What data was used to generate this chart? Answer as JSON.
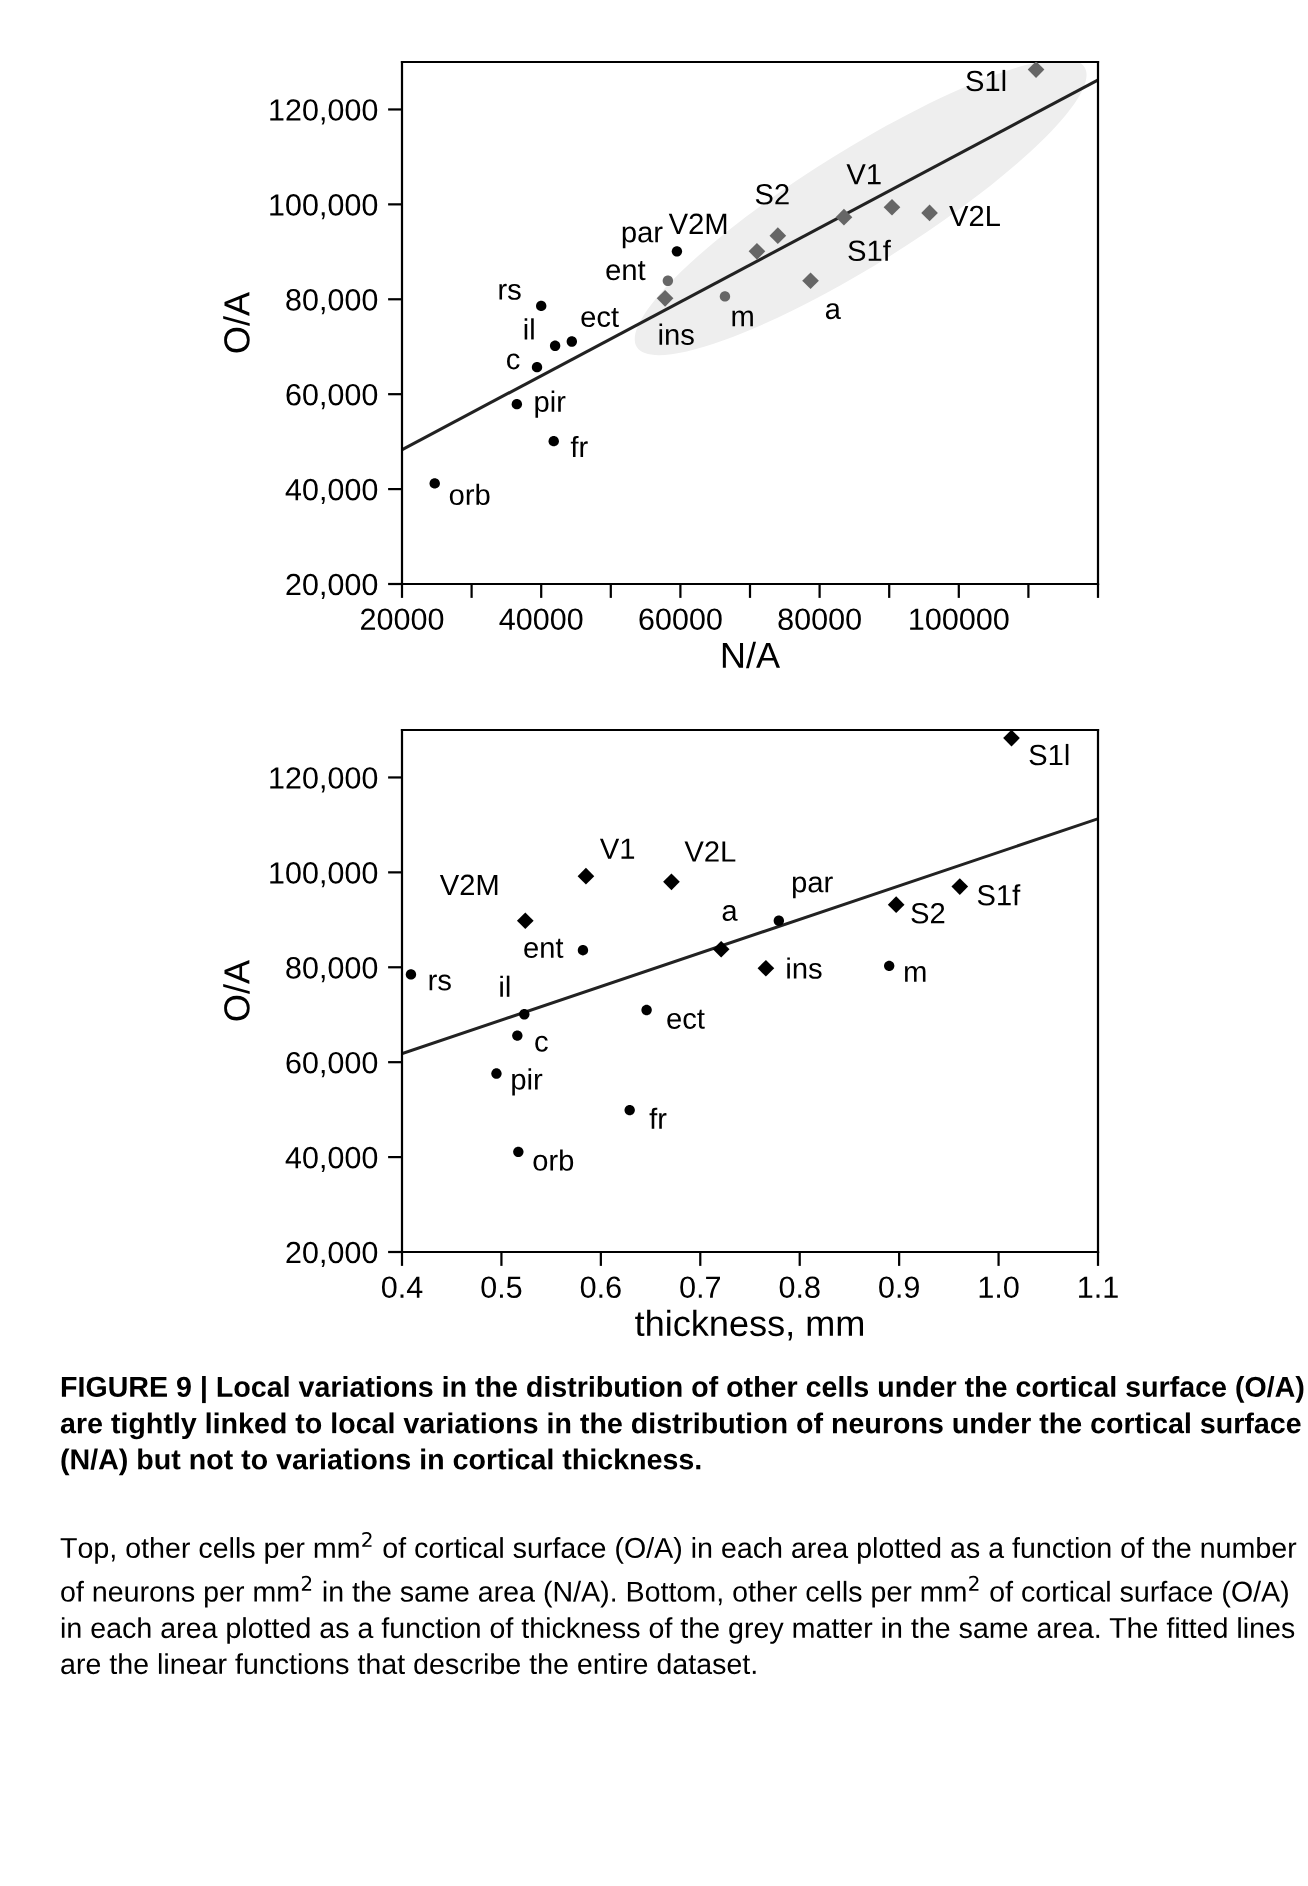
{
  "chart_data": [
    {
      "type": "scatter",
      "xlabel": "N/A",
      "ylabel": "O/A",
      "xlim": [
        20000,
        120000
      ],
      "ylim": [
        20000,
        130000
      ],
      "xticks": [
        20000,
        {
          "value": 30000,
          "label": null
        },
        40000,
        {
          "value": 50000,
          "label": null
        },
        60000,
        {
          "value": 70000,
          "label": null
        },
        80000,
        {
          "value": 90000,
          "label": null
        },
        100000,
        {
          "value": 110000,
          "label": null
        },
        {
          "value": 120000,
          "label": null
        }
      ],
      "yticks": [
        {
          "value": 20000,
          "label": "20,000"
        },
        {
          "value": 40000,
          "label": "40,000"
        },
        {
          "value": 60000,
          "label": "60,000"
        },
        {
          "value": 80000,
          "label": "80,000"
        },
        {
          "value": 100000,
          "label": "100,000"
        },
        {
          "value": 120000,
          "label": "120,000"
        }
      ],
      "grid": false,
      "legend": false,
      "series": [
        {
          "marker": "circle",
          "color": "#000000",
          "x": [
            24700,
            36500,
            39400,
            40000,
            42000,
            44400,
            41800,
            59500
          ],
          "values": [
            41200,
            57900,
            65700,
            78600,
            70200,
            71100,
            50100,
            90100
          ]
        },
        {
          "marker": "circle",
          "color": "#666666",
          "x": [
            58200,
            66400
          ],
          "values": [
            83900,
            80600
          ]
        },
        {
          "marker": "diamond",
          "color": "#666666",
          "x": [
            57800,
            71000,
            74000,
            78700,
            83500,
            90400,
            95800,
            111100
          ],
          "values": [
            80200,
            90100,
            93400,
            83900,
            97300,
            99400,
            98200,
            128400
          ]
        },
        {
          "type": "line",
          "color": "#222222",
          "x": [
            20000,
            120000
          ],
          "values": [
            48300,
            126200
          ]
        }
      ],
      "annotations": [
        {
          "text": "orb",
          "x": 24700,
          "y": 41200
        },
        {
          "text": "pir",
          "x": 36500,
          "y": 57900
        },
        {
          "text": "c",
          "x": 39400,
          "y": 65700
        },
        {
          "text": "rs",
          "x": 40000,
          "y": 78600
        },
        {
          "text": "il",
          "x": 42000,
          "y": 70200
        },
        {
          "text": "ect",
          "x": 44400,
          "y": 71100
        },
        {
          "text": "fr",
          "x": 41800,
          "y": 50100
        },
        {
          "text": "par",
          "x": 59500,
          "y": 90100
        },
        {
          "text": "ent",
          "x": 58200,
          "y": 83900
        },
        {
          "text": "ins",
          "x": 57800,
          "y": 80200
        },
        {
          "text": "m",
          "x": 66400,
          "y": 80600
        },
        {
          "text": "V2M",
          "x": 71000,
          "y": 90100
        },
        {
          "text": "S2",
          "x": 74000,
          "y": 93400
        },
        {
          "text": "a",
          "x": 78700,
          "y": 83900
        },
        {
          "text": "S1f",
          "x": 83500,
          "y": 97300
        },
        {
          "text": "V1",
          "x": 90400,
          "y": 99400
        },
        {
          "text": "V2L",
          "x": 95800,
          "y": 98200
        },
        {
          "text": "S1l",
          "x": 111100,
          "y": 128400
        }
      ]
    },
    {
      "type": "scatter",
      "xlabel": "thickness, mm",
      "ylabel": "O/A",
      "xlim": [
        0.4,
        1.1
      ],
      "ylim": [
        20000,
        130000
      ],
      "xticks": [
        {
          "value": 0.4,
          "label": "0.4"
        },
        {
          "value": 0.5,
          "label": "0.5"
        },
        {
          "value": 0.6,
          "label": "0.6"
        },
        {
          "value": 0.7,
          "label": "0.7"
        },
        {
          "value": 0.8,
          "label": "0.8"
        },
        {
          "value": 0.9,
          "label": "0.9"
        },
        {
          "value": 1.0,
          "label": "1.0"
        },
        {
          "value": 1.1,
          "label": "1.1"
        }
      ],
      "yticks": [
        {
          "value": 20000,
          "label": "20,000"
        },
        {
          "value": 40000,
          "label": "40,000"
        },
        {
          "value": 60000,
          "label": "60,000"
        },
        {
          "value": 80000,
          "label": "80,000"
        },
        {
          "value": 100000,
          "label": "100,000"
        },
        {
          "value": 120000,
          "label": "120,000"
        }
      ],
      "grid": false,
      "legend": false,
      "series": [
        {
          "marker": "circle",
          "color": "#000000",
          "x": [
            0.409,
            0.523,
            0.516,
            0.495,
            0.517,
            0.582,
            0.629,
            0.646,
            0.779,
            0.89
          ],
          "values": [
            78500,
            70100,
            65600,
            57600,
            41100,
            83600,
            49900,
            71000,
            89800,
            80300
          ]
        },
        {
          "marker": "diamond",
          "color": "#000000",
          "x": [
            0.524,
            0.585,
            0.671,
            0.721,
            0.766,
            0.897,
            0.961,
            1.013
          ],
          "values": [
            89800,
            99200,
            98000,
            83800,
            79800,
            93200,
            97000,
            128300
          ]
        },
        {
          "type": "line",
          "color": "#222222",
          "x": [
            0.4,
            1.1
          ],
          "values": [
            61800,
            111300
          ]
        }
      ],
      "annotations": [
        {
          "text": "rs",
          "x": 0.409,
          "y": 78500
        },
        {
          "text": "il",
          "x": 0.523,
          "y": 70100
        },
        {
          "text": "c",
          "x": 0.516,
          "y": 65600
        },
        {
          "text": "pir",
          "x": 0.495,
          "y": 57600
        },
        {
          "text": "orb",
          "x": 0.517,
          "y": 41100
        },
        {
          "text": "V2M",
          "x": 0.524,
          "y": 89800
        },
        {
          "text": "V1",
          "x": 0.585,
          "y": 99200
        },
        {
          "text": "ent",
          "x": 0.582,
          "y": 83600
        },
        {
          "text": "V2L",
          "x": 0.671,
          "y": 98000
        },
        {
          "text": "fr",
          "x": 0.629,
          "y": 49900
        },
        {
          "text": "ect",
          "x": 0.646,
          "y": 71000
        },
        {
          "text": "a",
          "x": 0.721,
          "y": 83800
        },
        {
          "text": "ins",
          "x": 0.766,
          "y": 79800
        },
        {
          "text": "par",
          "x": 0.779,
          "y": 89800
        },
        {
          "text": "m",
          "x": 0.89,
          "y": 80300
        },
        {
          "text": "S2",
          "x": 0.897,
          "y": 93200
        },
        {
          "text": "S1f",
          "x": 0.961,
          "y": 97000
        },
        {
          "text": "S1l",
          "x": 1.013,
          "y": 128300
        },
        "FIGURE 9 | Local variations in the distribution of other cells under the cortical surface (O/A) are tightly linked to local variations in the distribution of neurons under the cortical surface (N/A) but not to variations in cortical thickness.",
        "Top, other cells per mm$^{2}$ of cortical surface (O/A) in each area plotted as a function of the number of neurons per mm$^{2}$ in the same area (N/A). Bottom, other cells per mm$^{2}$ of cortical surface (O/A) in each area plotted as a function of thickness of the grey matter in the same area. The fitted lines are the linear functions that describe the entire dataset."
      ]
    }
  ]
}
